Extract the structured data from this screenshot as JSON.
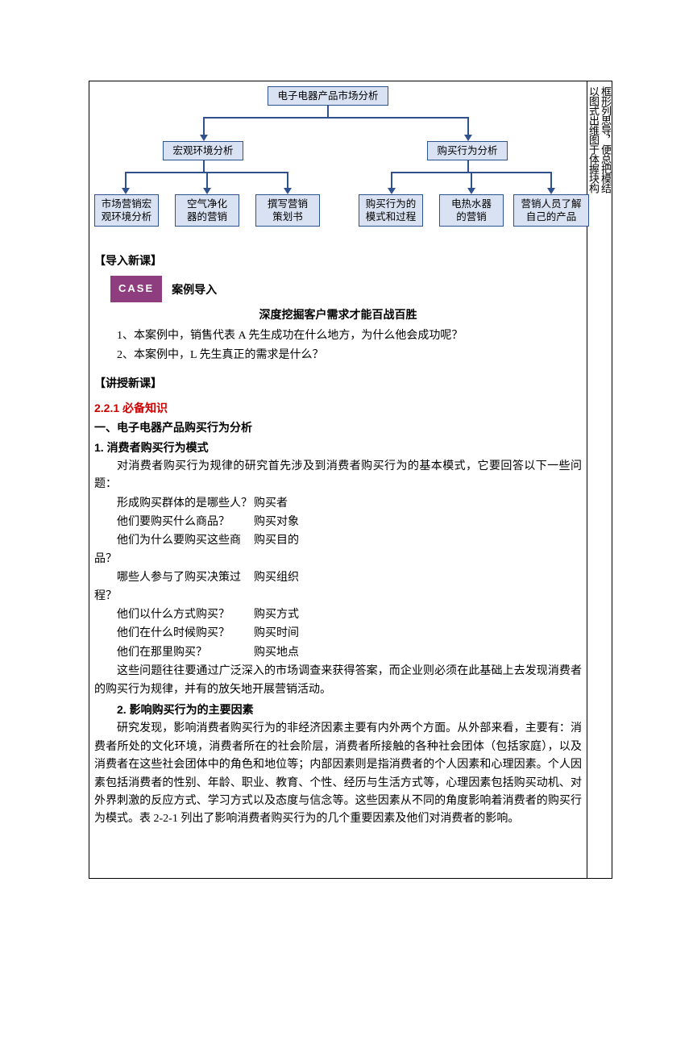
{
  "sidebar": {
    "col_a": "以图式出维图于体握块构",
    "col_b": "框形列思导，便总把模结"
  },
  "flowchart": {
    "root": "电子电器产品市场分析",
    "mid": {
      "left": "宏观环境分析",
      "right": "购买行为分析"
    },
    "leaves": {
      "l1": "市场营销宏\n观环境分析",
      "l2": "空气净化\n器的营销",
      "l3": "撰写营销\n策划书",
      "r1": "购买行为的\n模式和过程",
      "r2": "电热水器\n的营销",
      "r3": "营销人员了解\n自己的产品"
    },
    "colors": {
      "node_bg": "#d9e2f3",
      "node_border": "#2f528f",
      "line": "#2f528f"
    }
  },
  "section_intro": {
    "bracket": "【导入新课】",
    "case_badge": "CASE",
    "case_label": "案例导入",
    "title": "深度挖掘客户需求才能百战百胜",
    "q1": "1、本案例中，销售代表 A 先生成功在什么地方，为什么他会成功呢？",
    "q2": "2、本案例中，L 先生真正的需求是什么？"
  },
  "section_lecture": {
    "bracket": "【讲授新课】",
    "red_heading": "2.2.1 必备知识",
    "h1": "一、电子电器产品购买行为分析",
    "h2_1": "1. 消费者购买行为模式",
    "p1": "对消费者购买行为规律的研究首先涉及到消费者购买行为的基本模式，它要回答以下一些问题：",
    "qa": [
      {
        "q": "形成购买群体的是哪些人？",
        "a": "购买者"
      },
      {
        "q": "他们要购买什么商品？",
        "a": "购买对象"
      },
      {
        "q": "他们为什么要购买这些商品？",
        "a": "购买目的"
      },
      {
        "q": "哪些人参与了购买决策过程？",
        "a": "购买组织"
      },
      {
        "q": "他们以什么方式购买？",
        "a": "购买方式"
      },
      {
        "q": "他们在什么时候购买？",
        "a": "购买时间"
      },
      {
        "q": "他们在那里购买？",
        "a": "购买地点"
      }
    ],
    "p2": "这些问题往往要通过广泛深入的市场调查来获得答案，而企业则必须在此基础上去发现消费者的购买行为规律，并有的放矢地开展营销活动。",
    "h2_2": "2. 影响购买行为的主要因素",
    "p3": "研究发现，影响消费者购买行为的非经济因素主要有内外两个方面。从外部来看，主要有：消费者所处的文化环境，消费者所在的社会阶层，消费者所接触的各种社会团体（包括家庭），以及消费者在这些社会团体中的角色和地位等；内部因素则是指消费者的个人因素和心理因素。个人因素包括消费者的性别、年龄、职业、教育、个性、经历与生活方式等，心理因素包括购买动机、对外界刺激的反应方式、学习方式以及态度与信念等。这些因素从不同的角度影响着消费者的购买行为模式。表 2-2-1 列出了影响消费者购买行为的几个重要因素及他们对消费者的影响。"
  }
}
